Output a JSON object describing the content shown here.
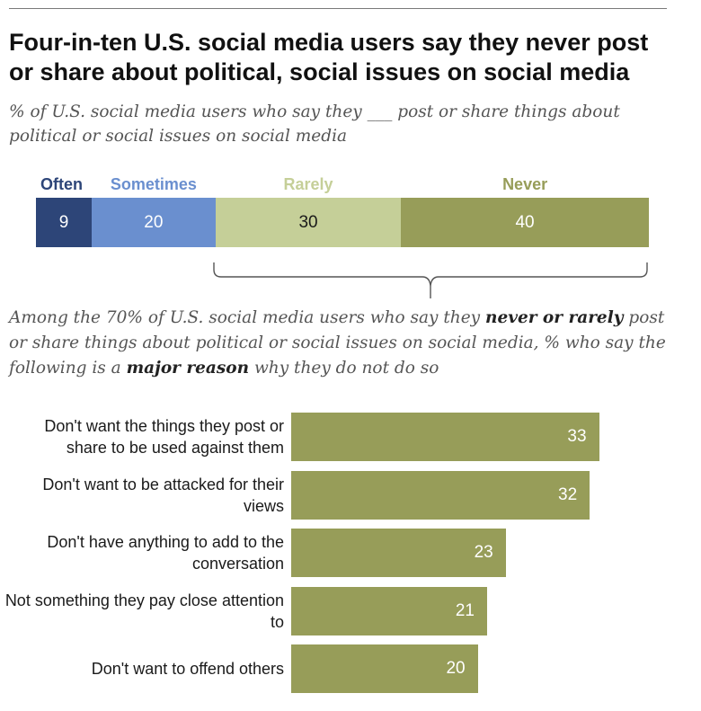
{
  "title": "Four-in-ten U.S. social media users say they never post or share about political, social issues on social media",
  "subtitle": "% of U.S. social media users who say they ___ post or share things about political or social issues on social media",
  "subtitle2": {
    "part1": "Among the 70% of U.S. social media users who say they ",
    "bold1": "never or rarely",
    "part2": " post or share things about political or social issues on social media, % who say the following is a ",
    "bold2": "major reason",
    "part3": " why they do not do so"
  },
  "colors": {
    "often": "#2d4578",
    "sometimes": "#6a8fcf",
    "rarely": "#c5cf98",
    "never": "#979d59",
    "bars": "#979d59"
  },
  "chart_data": [
    {
      "type": "bar",
      "orientation": "horizontal-stacked",
      "categories": [
        "Often",
        "Sometimes",
        "Rarely",
        "Never"
      ],
      "values": [
        9,
        20,
        30,
        40
      ],
      "value_labels": [
        "9",
        "20",
        "30",
        "40"
      ],
      "legend_placement": "top"
    },
    {
      "type": "bar",
      "orientation": "horizontal",
      "categories": [
        "Don't want the things they post or share to be used against them",
        "Don't want to be attacked for their views",
        "Don't have anything to add to the conversation",
        "Not something they pay close attention to",
        "Don't want to offend others"
      ],
      "values": [
        33,
        32,
        23,
        21,
        20
      ],
      "value_labels": [
        "33",
        "32",
        "23",
        "21",
        "20"
      ]
    }
  ]
}
